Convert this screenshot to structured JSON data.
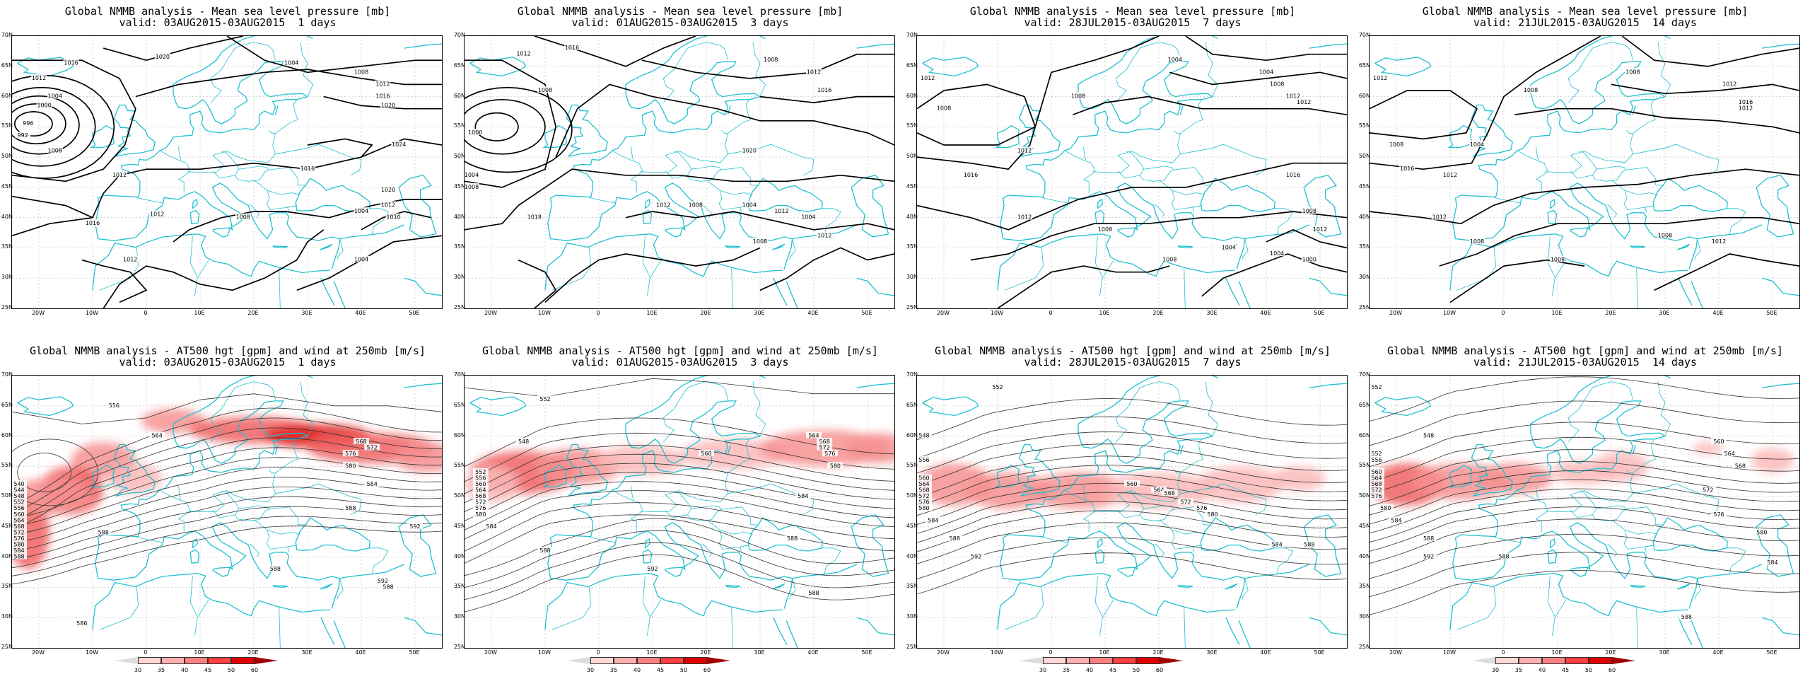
{
  "mslp_panels": [
    {
      "title": "Global NMMB analysis - Mean sea level pressure [mb]",
      "valid": "valid: 03AUG2015-03AUG2015  1 days"
    },
    {
      "title": "Global NMMB analysis - Mean sea level pressure [mb]",
      "valid": "valid: 01AUG2015-03AUG2015  3 days"
    },
    {
      "title": "Global NMMB analysis - Mean sea level pressure [mb]",
      "valid": "valid: 28JUL2015-03AUG2015  7 days"
    },
    {
      "title": "Global NMMB analysis - Mean sea level pressure [mb]",
      "valid": "valid: 21JUL2015-03AUG2015  14 days"
    }
  ],
  "z500_panels": [
    {
      "title": "Global NMMB analysis - AT500 hgt [gpm] and wind at 250mb [m/s]",
      "valid": "valid: 03AUG2015-03AUG2015  1 days"
    },
    {
      "title": "Global NMMB analysis - AT500 hgt [gpm] and wind at 250mb [m/s]",
      "valid": "valid: 01AUG2015-03AUG2015  3 days"
    },
    {
      "title": "Global NMMB analysis - AT500 hgt [gpm] and wind at 250mb [m/s]",
      "valid": "valid: 28JUL2015-03AUG2015  7 days"
    },
    {
      "title": "Global NMMB analysis - AT500 hgt [gpm] and wind at 250mb [m/s]",
      "valid": "valid: 21JUL2015-03AUG2015  14 days"
    }
  ],
  "lat_labels": [
    "70N",
    "65N",
    "60N",
    "55N",
    "50N",
    "45N",
    "40N",
    "35N",
    "30N",
    "25N"
  ],
  "lon_labels": [
    "20W",
    "10W",
    "0",
    "10E",
    "20E",
    "30E",
    "40E",
    "50E"
  ],
  "colorbar": {
    "labels": [
      "30",
      "35",
      "40",
      "45",
      "50",
      "60"
    ],
    "colors": [
      "#ffffff",
      "#ffd8d8",
      "#ffb0b0",
      "#ff8080",
      "#ff4040",
      "#e00000",
      "#a00000"
    ]
  },
  "mslp_contour_labels": [
    [
      "1016",
      "1012",
      "1004",
      "1000",
      "996",
      "992",
      "1008",
      "1020",
      "1004",
      "1008",
      "1012",
      "1016",
      "1020",
      "1024",
      "1020",
      "1016",
      "1012",
      "1012",
      "1008",
      "1004",
      "1012",
      "1004",
      "1016",
      "1012",
      "1010"
    ],
    [
      "1012",
      "1008",
      "1000",
      "1004",
      "1008",
      "1016",
      "1018",
      "1020",
      "1012",
      "1016",
      "1008",
      "1012",
      "1008",
      "1004",
      "1012",
      "1008",
      "1004",
      "1012"
    ],
    [
      "1012",
      "1008",
      "1016",
      "1012",
      "1008",
      "1004",
      "1004",
      "1008",
      "1012",
      "1012",
      "1016",
      "1012",
      "1008",
      "1008",
      "1004",
      "1004",
      "1000",
      "1012",
      "1008"
    ],
    [
      "1012",
      "1008",
      "1016",
      "1012",
      "1008",
      "1004",
      "1008",
      "1012",
      "1012",
      "1016",
      "1012",
      "1008",
      "1008",
      "1008",
      "1012"
    ]
  ],
  "z500_contour_labels": [
    [
      "556",
      "540",
      "544",
      "548",
      "552",
      "556",
      "560",
      "564",
      "568",
      "572",
      "576",
      "580",
      "584",
      "588",
      "564",
      "568",
      "572",
      "576",
      "580",
      "584",
      "588",
      "592",
      "588",
      "588",
      "592",
      "588",
      "586"
    ],
    [
      "552",
      "548",
      "552",
      "556",
      "560",
      "564",
      "568",
      "572",
      "576",
      "580",
      "584",
      "588",
      "560",
      "564",
      "568",
      "572",
      "576",
      "580",
      "584",
      "588",
      "592",
      "588"
    ],
    [
      "552",
      "548",
      "556",
      "560",
      "564",
      "568",
      "572",
      "576",
      "580",
      "584",
      "588",
      "592",
      "560",
      "564",
      "568",
      "572",
      "576",
      "580",
      "584",
      "588"
    ],
    [
      "552",
      "548",
      "552",
      "556",
      "560",
      "564",
      "568",
      "572",
      "576",
      "580",
      "584",
      "588",
      "592",
      "560",
      "564",
      "568",
      "572",
      "576",
      "580",
      "584",
      "588",
      "588"
    ]
  ]
}
